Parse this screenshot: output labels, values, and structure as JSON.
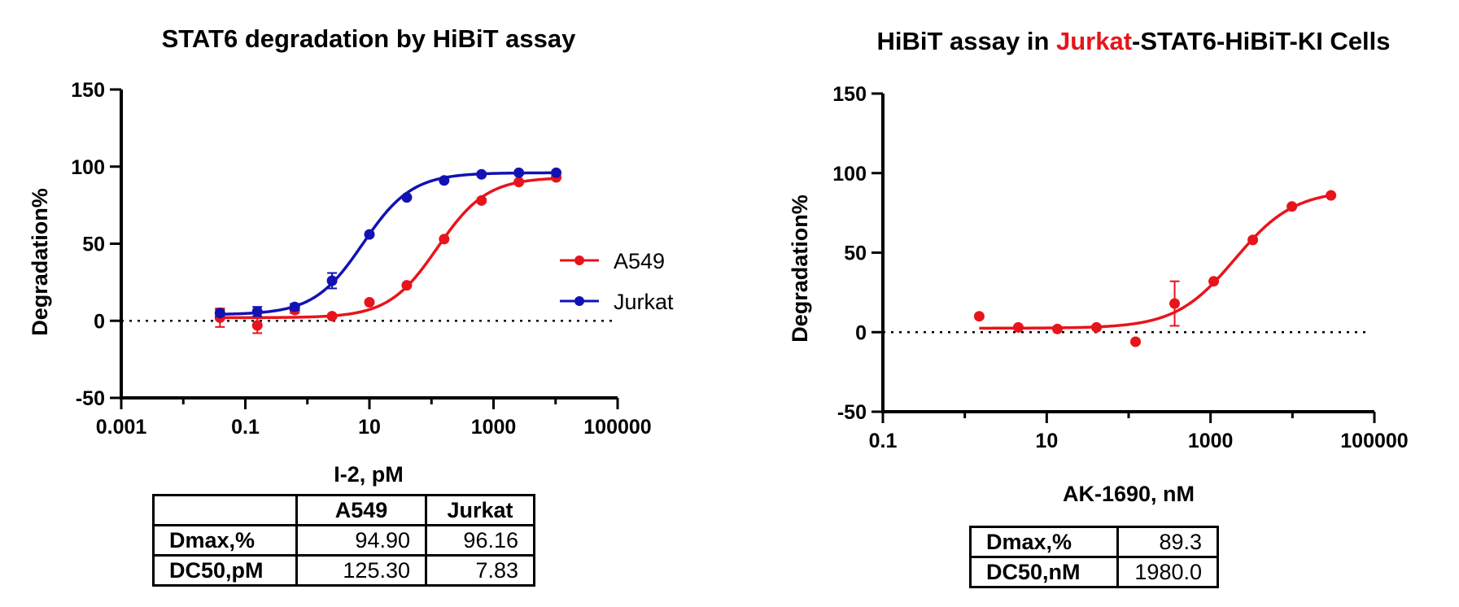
{
  "chart_data": [
    {
      "type": "line",
      "title": "STAT6 degradation by HiBiT assay",
      "xlabel": "I-2, pM",
      "ylabel": "Degradation%",
      "xscale": "log",
      "xlim": [
        0.001,
        100000
      ],
      "ylim": [
        -50,
        150
      ],
      "x_ticks": [
        "0.001",
        "0.1",
        "10",
        "1000",
        "100000"
      ],
      "y_ticks": [
        "-50",
        "0",
        "50",
        "100",
        "150"
      ],
      "reference_line": 0,
      "legend_position": "right",
      "series": [
        {
          "name": "A549",
          "color": "#e8141b",
          "x": [
            0.039,
            0.156,
            0.625,
            2.5,
            10,
            40,
            160,
            640,
            2560,
            10240
          ],
          "y": [
            2,
            -3,
            7,
            3,
            12,
            23,
            53,
            78,
            90,
            93
          ],
          "err": [
            6,
            5,
            2,
            1,
            0,
            0,
            0,
            0,
            0,
            0
          ],
          "fit": {
            "bottom": 2,
            "top": 93,
            "ec50": 125.3,
            "hill": 1.1
          }
        },
        {
          "name": "Jurkat",
          "color": "#1212b4",
          "x": [
            0.039,
            0.156,
            0.625,
            2.5,
            10,
            40,
            160,
            640,
            2560,
            10240
          ],
          "y": [
            5,
            6,
            9,
            26,
            56,
            80,
            91,
            95,
            96,
            96
          ],
          "err": [
            2,
            3,
            2,
            5,
            0,
            0,
            0,
            0,
            0,
            0
          ],
          "fit": {
            "bottom": 4,
            "top": 96,
            "ec50": 7.83,
            "hill": 1.1
          }
        }
      ]
    },
    {
      "type": "line",
      "title_parts": [
        "HiBiT assay in ",
        "Jurkat",
        "-STAT6-HiBiT-KI Cells"
      ],
      "title_colors": [
        "#000000",
        "#e8141b",
        "#000000"
      ],
      "xlabel": "AK-1690, nM",
      "ylabel": "Degradation%",
      "xscale": "log",
      "xlim": [
        0.1,
        100000
      ],
      "ylim": [
        -50,
        150
      ],
      "x_ticks": [
        "0.1",
        "10",
        "1000",
        "100000"
      ],
      "y_ticks": [
        "-50",
        "0",
        "50",
        "100",
        "150"
      ],
      "reference_line": 0,
      "series": [
        {
          "color": "#e8141b",
          "x": [
            1.5,
            4.5,
            13.5,
            40.5,
            121.5,
            364.5,
            1093.5,
            3280.5,
            9841.5,
            29524.5
          ],
          "y": [
            10,
            3,
            2,
            3,
            -6,
            18,
            32,
            58,
            79,
            86
          ],
          "err": [
            0,
            0,
            0,
            0,
            0,
            14,
            0,
            0,
            0,
            0
          ],
          "fit": {
            "bottom": 2.5,
            "top": 89.3,
            "ec50": 1980.0,
            "hill": 1.2
          }
        }
      ]
    }
  ],
  "tables": {
    "left": {
      "col_a549": "A549",
      "col_jurkat": "Jurkat",
      "row1_label": "Dmax,%",
      "row1_a549": "94.90",
      "row1_jurkat": "96.16",
      "row2_label": "DC50,pM",
      "row2_a549": "125.30",
      "row2_jurkat": "7.83"
    },
    "right": {
      "row1_label": "Dmax,%",
      "row1_value": "89.3",
      "row2_label": "DC50,nM",
      "row2_value": "1980.0"
    }
  }
}
